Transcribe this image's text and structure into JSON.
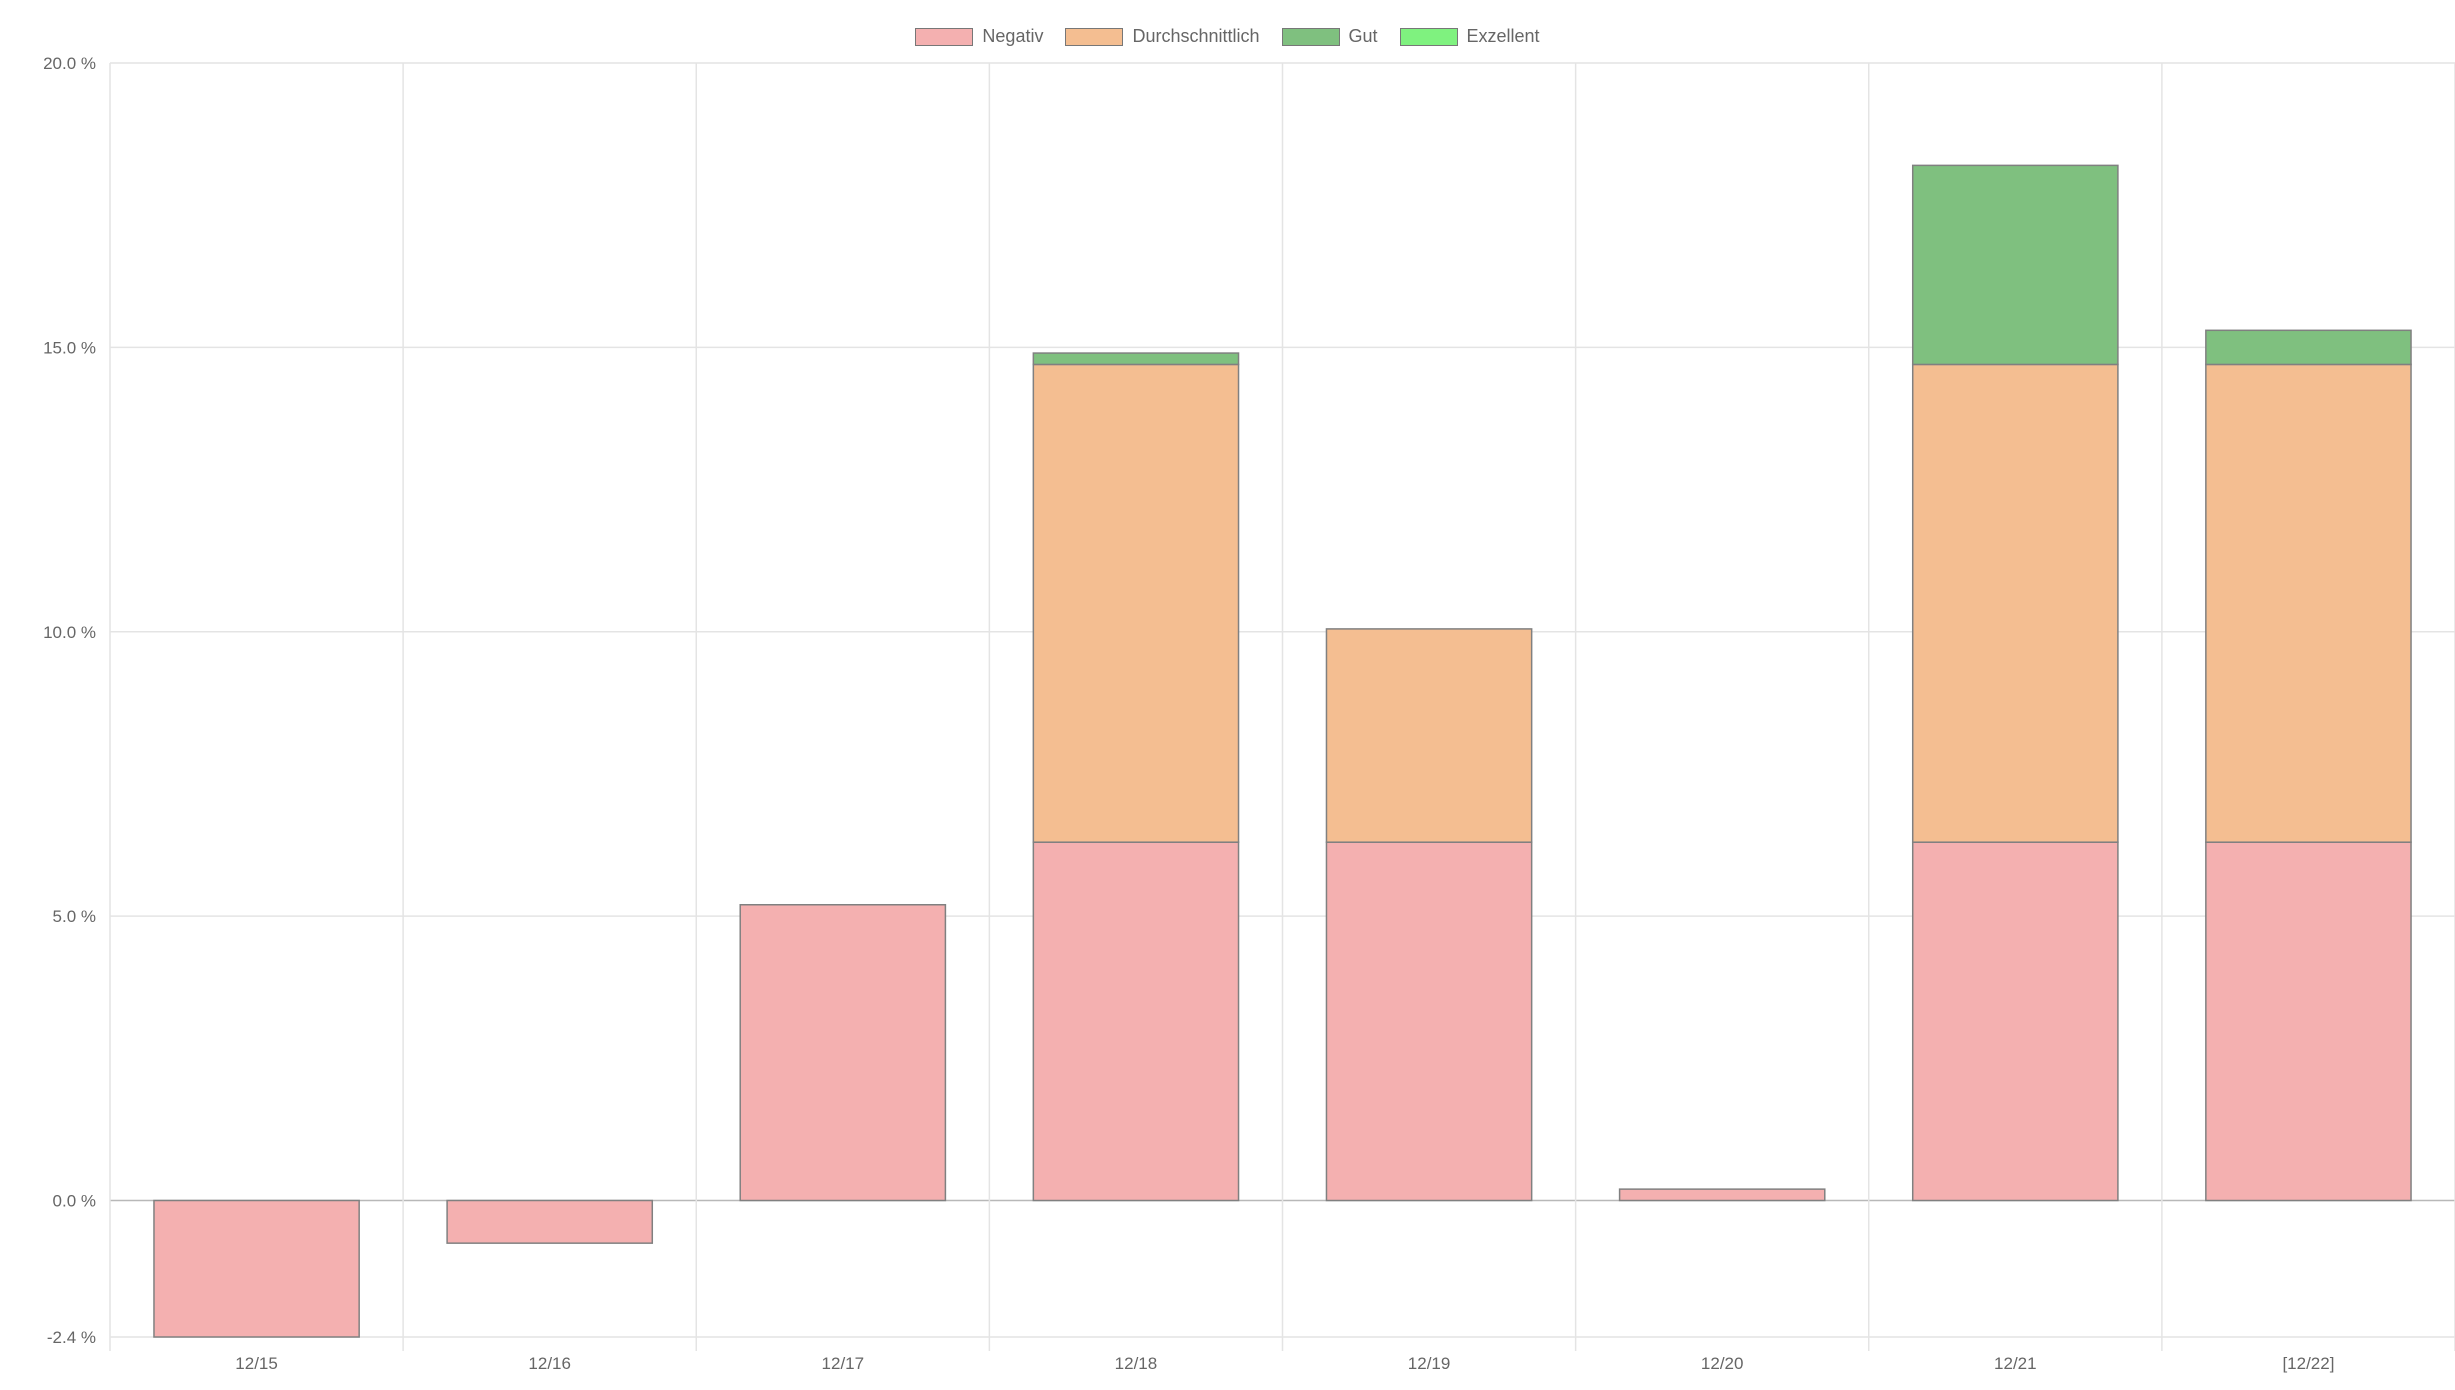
{
  "chart_data": {
    "type": "bar",
    "stacked": true,
    "categories": [
      "12/15",
      "12/16",
      "12/17",
      "12/18",
      "12/19",
      "12/20",
      "12/21",
      "[12/22]"
    ],
    "series": [
      {
        "name": "Negativ",
        "color": "#f4b0b0",
        "values": [
          -2.4,
          -0.75,
          5.2,
          6.3,
          6.3,
          0.2,
          6.3,
          6.3
        ]
      },
      {
        "name": "Durchschnittlich",
        "color": "#f4be91",
        "values": [
          0,
          0,
          0,
          8.4,
          3.75,
          0,
          8.4,
          8.4
        ]
      },
      {
        "name": "Gut",
        "color": "#7fc07f",
        "values": [
          0,
          0,
          0,
          0.2,
          0,
          0,
          3.5,
          0.6
        ]
      },
      {
        "name": "Exzellent",
        "color": "#7ff27f",
        "values": [
          0,
          0,
          0,
          0,
          0,
          0,
          0,
          0
        ]
      }
    ],
    "y_ticks": [
      "20.0 %",
      "15.0 %",
      "10.0 %",
      "5.0 %",
      "0.0 %",
      "-2.4 %"
    ],
    "y_tick_values": [
      20,
      15,
      10,
      5,
      0,
      -2.4
    ],
    "ylim": [
      -2.4,
      20
    ],
    "grid": true,
    "legend_position": "top",
    "xlabel": "",
    "ylabel": ""
  }
}
